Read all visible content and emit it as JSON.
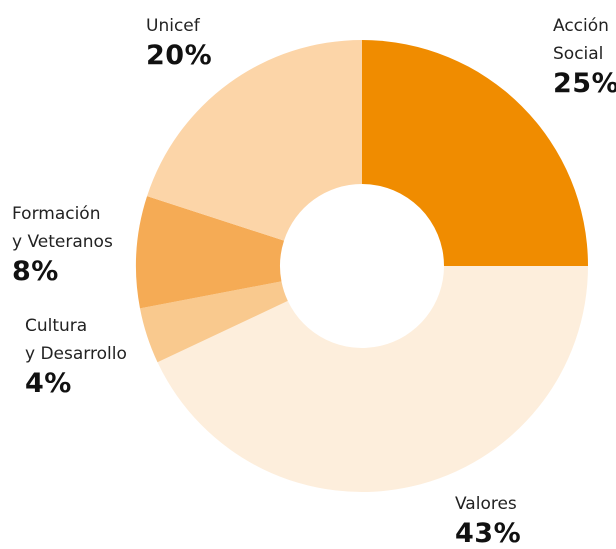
{
  "chart_data": {
    "type": "donut",
    "categories": [
      "Acción\nSocial",
      "Valores",
      "Cultura\ny Desarrollo",
      "Formación\ny Veteranos",
      "Unicef"
    ],
    "values": [
      25,
      43,
      4,
      8,
      20
    ],
    "value_labels": [
      "25%",
      "43%",
      "4%",
      "8%",
      "20%"
    ],
    "colors": [
      "#f08c00",
      "#fdeedc",
      "#f9c98e",
      "#f5ab55",
      "#fcd5a8"
    ]
  }
}
